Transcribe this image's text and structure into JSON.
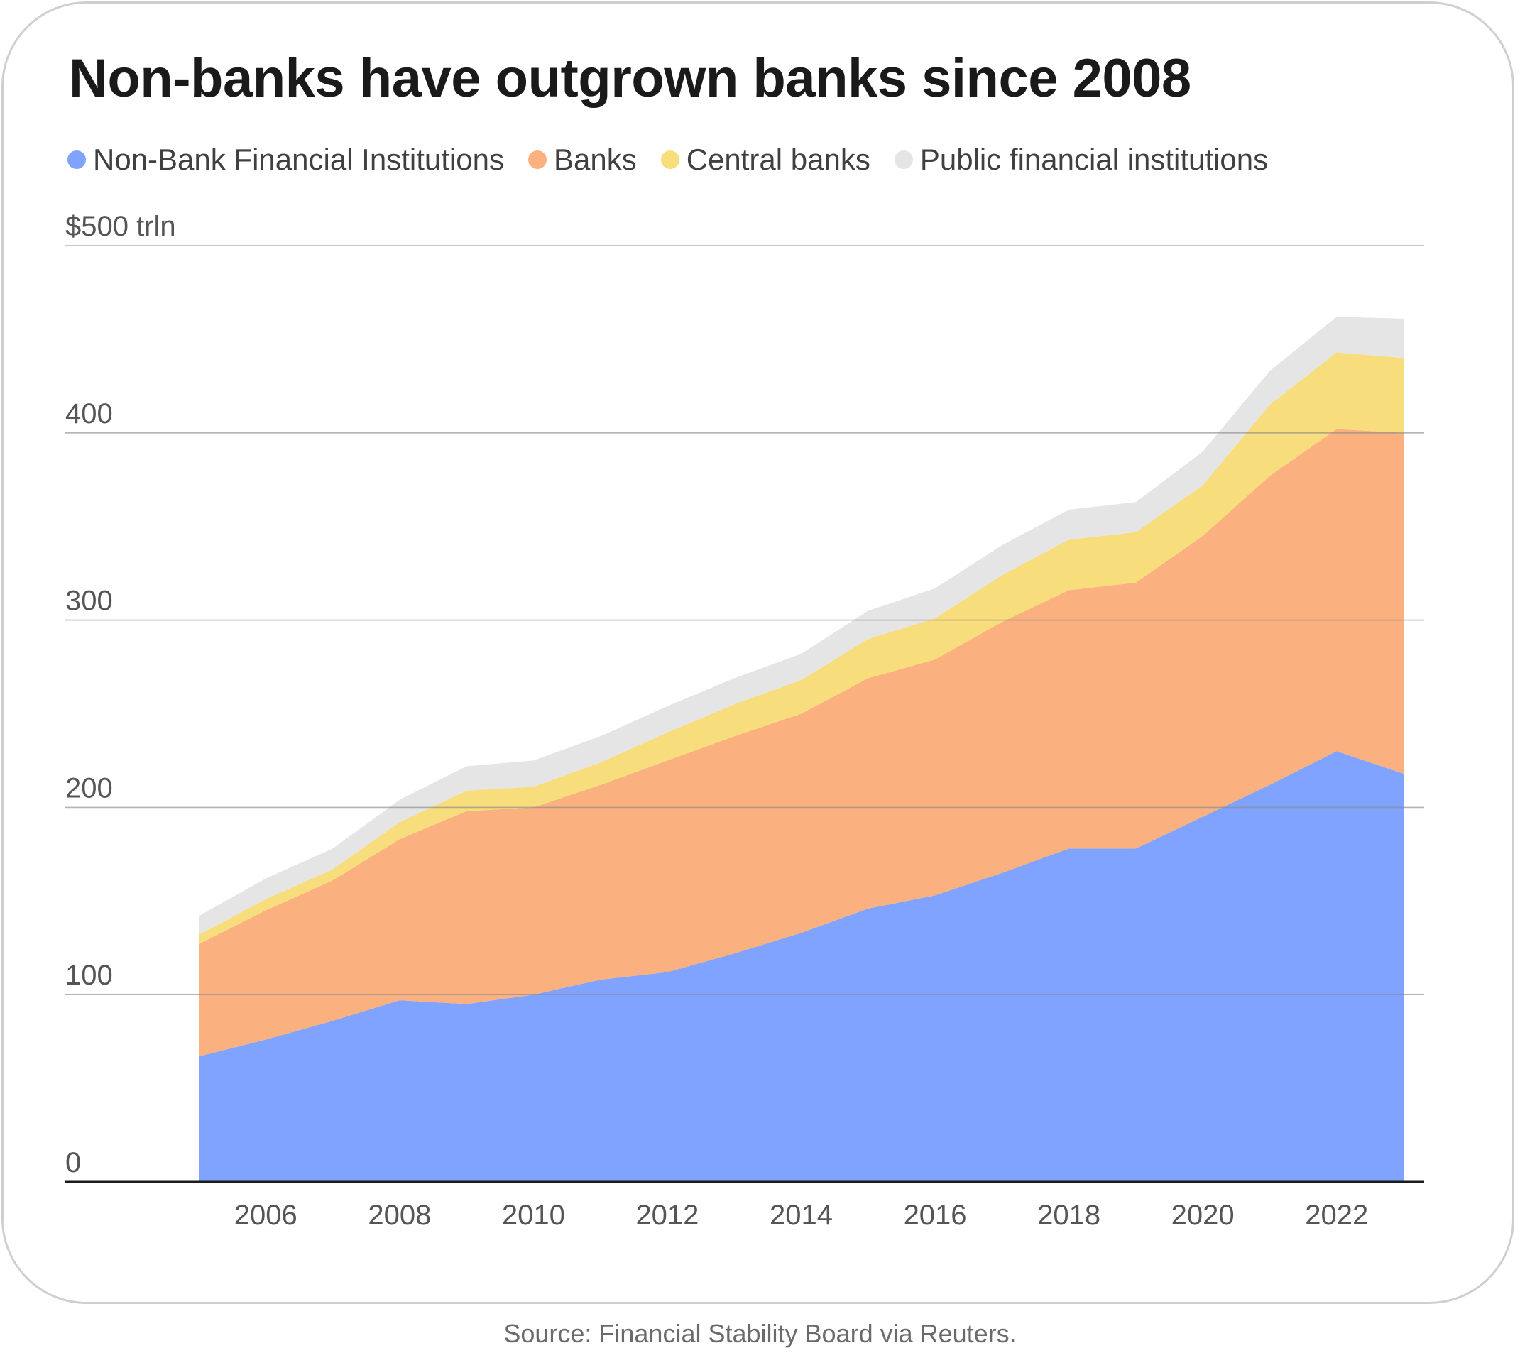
{
  "title": "Non-banks have outgrown banks since 2008",
  "source": "Source: Financial Stability Board via Reuters.",
  "chart_data": {
    "type": "area",
    "stacked": true,
    "title": "Non-banks have outgrown banks since 2008",
    "xlabel": "",
    "ylabel": "",
    "x": [
      2005,
      2006,
      2007,
      2008,
      2009,
      2010,
      2011,
      2012,
      2013,
      2014,
      2015,
      2016,
      2017,
      2018,
      2019,
      2020,
      2021,
      2022,
      2023
    ],
    "x_ticks": [
      "2006",
      "2008",
      "2010",
      "2012",
      "2014",
      "2016",
      "2018",
      "2020",
      "2022"
    ],
    "x_tick_values": [
      2006,
      2008,
      2010,
      2012,
      2014,
      2016,
      2018,
      2020,
      2022
    ],
    "y_ticks": [
      "0",
      "100",
      "200",
      "300",
      "400",
      "$500 trln"
    ],
    "y_tick_values": [
      0,
      100,
      200,
      300,
      400,
      500
    ],
    "ylim": [
      0,
      500
    ],
    "grid": true,
    "legend_position": "top-left",
    "series": [
      {
        "name": "Non-Bank Financial Institutions",
        "color": "#7fa3ff",
        "values": [
          67,
          76,
          86,
          97,
          95,
          100,
          108,
          112,
          122,
          133,
          146,
          153,
          165,
          178,
          178,
          195,
          212,
          230,
          218
        ]
      },
      {
        "name": "Banks",
        "color": "#fbb07f",
        "values": [
          60,
          69,
          75,
          86,
          103,
          100,
          104,
          113,
          116,
          117,
          123,
          126,
          134,
          138,
          142,
          150,
          165,
          172,
          182
        ]
      },
      {
        "name": "Central banks",
        "color": "#f7dd7c",
        "values": [
          5,
          6,
          6,
          9,
          11,
          11,
          12,
          15,
          17,
          18,
          21,
          22,
          25,
          27,
          27,
          27,
          38,
          41,
          40
        ]
      },
      {
        "name": "Public financial institutions",
        "color": "#e5e5e5",
        "values": [
          10,
          11,
          11,
          12,
          13,
          14,
          14,
          14,
          14,
          14,
          15,
          16,
          16,
          16,
          16,
          18,
          18,
          19,
          21
        ]
      }
    ]
  }
}
